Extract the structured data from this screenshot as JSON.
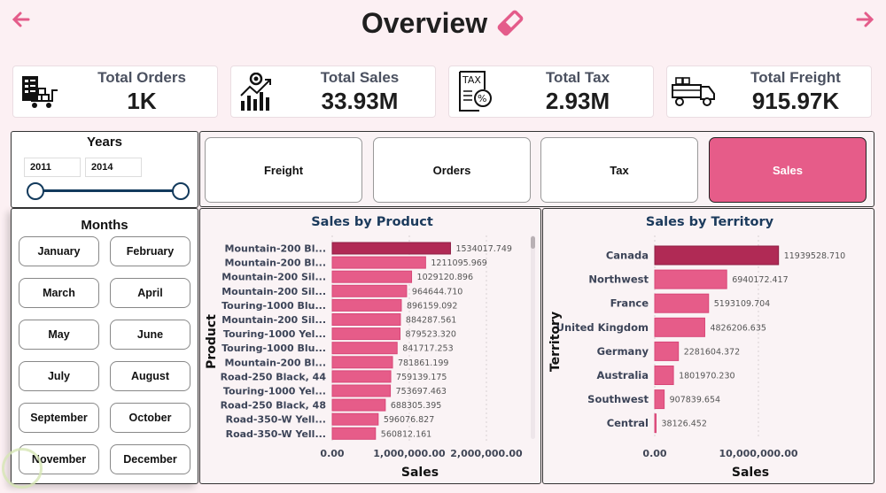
{
  "header": {
    "title": "Overview",
    "back_icon": "arrow-left-icon",
    "forward_icon": "arrow-right-icon",
    "title_icon": "eraser-icon",
    "accent_color": "#e65c89"
  },
  "kpis": [
    {
      "label": "Total Orders",
      "value": "1K",
      "icon": "orders-cart-icon"
    },
    {
      "label": "Total Sales",
      "value": "33.93M",
      "icon": "sales-growth-icon"
    },
    {
      "label": "Total Tax",
      "value": "2.93M",
      "icon": "tax-document-icon"
    },
    {
      "label": "Total Freight",
      "value": "915.97K",
      "icon": "delivery-truck-icon"
    }
  ],
  "years_slicer": {
    "title": "Years",
    "start": "2011",
    "end": "2014"
  },
  "months_slicer": {
    "title": "Months",
    "months": [
      "January",
      "February",
      "March",
      "April",
      "May",
      "June",
      "July",
      "August",
      "September",
      "October",
      "November",
      "December"
    ]
  },
  "metric_buttons": {
    "items": [
      "Freight",
      "Orders",
      "Tax",
      "Sales"
    ],
    "active": "Sales"
  },
  "chart_data": [
    {
      "type": "bar",
      "orientation": "horizontal",
      "title": "Sales by Product",
      "xlabel": "Sales",
      "ylabel": "Product",
      "xlim": [
        0,
        2000000
      ],
      "x_ticks": [
        "0.00",
        "1,000,000.00",
        "2,000,000.00"
      ],
      "grid": true,
      "categories": [
        "Mountain-200 Bl...",
        "Mountain-200 Bl...",
        "Mountain-200 Sil...",
        "Mountain-200 Sil...",
        "Touring-1000 Blu...",
        "Mountain-200 Sil...",
        "Touring-1000 Yel...",
        "Touring-1000 Blu...",
        "Mountain-200 Bl...",
        "Road-250 Black, 44",
        "Touring-1000 Yel...",
        "Road-250 Black, 48",
        "Road-350-W Yell...",
        "Road-350-W Yell..."
      ],
      "values": [
        1534017.749,
        1211095.969,
        1029120.896,
        964644.71,
        896159.092,
        884287.561,
        879523.32,
        841717.253,
        781861.199,
        759139.175,
        753697.463,
        688305.395,
        596076.827,
        560812.161
      ],
      "value_labels": [
        "1534017.749",
        "1211095.969",
        "1029120.896",
        "964644.710",
        "896159.092",
        "884287.561",
        "879523.320",
        "841717.253",
        "781861.199",
        "759139.175",
        "753697.463",
        "688305.395",
        "596076.827",
        "560812.161"
      ],
      "highlight_color": "#b02a55",
      "bar_color": "#e65c89"
    },
    {
      "type": "bar",
      "orientation": "horizontal",
      "title": "Sales by Territory",
      "xlabel": "Sales",
      "ylabel": "Territory",
      "xlim": [
        0,
        20000000
      ],
      "x_ticks": [
        "0.00",
        "10,000,000.00"
      ],
      "grid": true,
      "categories": [
        "Canada",
        "Northwest",
        "France",
        "United Kingdom",
        "Germany",
        "Australia",
        "Southwest",
        "Central"
      ],
      "values": [
        11939528.71,
        6940172.417,
        5193109.704,
        4826206.635,
        2281604.372,
        1801970.23,
        907839.654,
        38126.452
      ],
      "value_labels": [
        "11939528.710",
        "6940172.417",
        "5193109.704",
        "4826206.635",
        "2281604.372",
        "1801970.230",
        "907839.654",
        "38126.452"
      ],
      "highlight_color": "#b02a55",
      "bar_color": "#e65c89"
    }
  ]
}
